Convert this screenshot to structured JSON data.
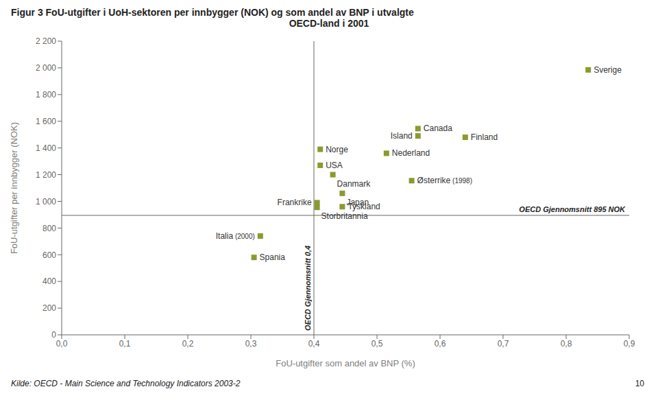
{
  "chart_data": {
    "type": "scatter",
    "title": "Figur 3   FoU-utgifter i UoH-sektoren per innbygger (NOK) og som andel av BNP i utvalgte",
    "subtitle": "OECD-land i 2001",
    "x_label": "FoU-utgifter som andel av BNP (%)",
    "y_label": "FoU-utgifter per innbygger (NOK)",
    "annotations": [
      "Kilde: OECD - Main Science and Technology Indicators 2003-2",
      "10"
    ],
    "color": "#8b9a2e",
    "marker": "square",
    "grid": false,
    "xlim": [
      0.0,
      0.9
    ],
    "ylim": [
      0,
      2200
    ],
    "xticks": [
      {
        "value": 0.0,
        "label": "0,0"
      },
      {
        "value": 0.1,
        "label": "0,1"
      },
      {
        "value": 0.2,
        "label": "0,2"
      },
      {
        "value": 0.3,
        "label": "0,3"
      },
      {
        "value": 0.4,
        "label": "0,4"
      },
      {
        "value": 0.5,
        "label": "0,5"
      },
      {
        "value": 0.6,
        "label": "0,6"
      },
      {
        "value": 0.7,
        "label": "0,7"
      },
      {
        "value": 0.8,
        "label": "0,8"
      },
      {
        "value": 0.9,
        "label": "0,9"
      }
    ],
    "yticks": [
      0,
      200,
      400,
      600,
      800,
      {
        "value": 1000,
        "label": "1 000"
      },
      {
        "value": 1200,
        "label": "1 200"
      },
      {
        "value": 1400,
        "label": "1 400"
      },
      {
        "value": 1600,
        "label": "1 600"
      },
      {
        "value": 1800,
        "label": "1 800"
      },
      {
        "value": 2000,
        "label": "2 000"
      },
      {
        "value": 2200,
        "label": "2 200"
      }
    ],
    "reference_lines": [
      {
        "axis": "x",
        "value": 0.4,
        "label": "OECD Gjennomsnitt 0,4"
      },
      {
        "axis": "y",
        "value": 895,
        "label": "OECD Gjennomsnitt 895 NOK"
      }
    ],
    "points": [
      {
        "name": "Norge",
        "x": 0.41,
        "y": 1390
      },
      {
        "name": "USA",
        "x": 0.41,
        "y": 1270
      },
      {
        "name": "Danmark",
        "x": 0.43,
        "y": 1200
      },
      {
        "name": "Frankrike",
        "x": 0.405,
        "y": 990
      },
      {
        "name": "Storbritannia",
        "x": 0.405,
        "y": 955
      },
      {
        "name": "Canada",
        "x": 0.565,
        "y": 1545
      },
      {
        "name": "Island",
        "x": 0.565,
        "y": 1490
      },
      {
        "name": "Nederland",
        "x": 0.515,
        "y": 1360
      },
      {
        "name": "Finland",
        "x": 0.64,
        "y": 1480
      },
      {
        "name": "Japan",
        "x": 0.445,
        "y": 1060
      },
      {
        "name": "Tyskland",
        "x": 0.445,
        "y": 960
      },
      {
        "name": "Sverige",
        "x": 0.835,
        "y": 1985
      },
      {
        "name": "Italia",
        "x": 0.315,
        "y": 740,
        "suffix": "(2000)"
      },
      {
        "name": "Spania",
        "x": 0.305,
        "y": 580
      },
      {
        "name": "Østerrike",
        "x": 0.555,
        "y": 1155,
        "suffix": "(1998)"
      }
    ]
  }
}
